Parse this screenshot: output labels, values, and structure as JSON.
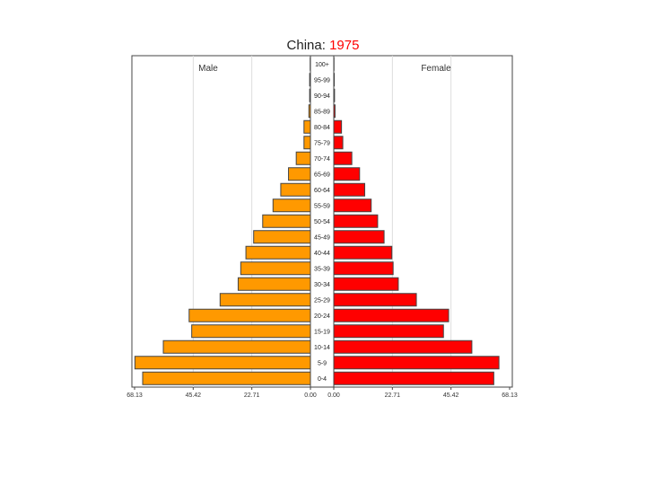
{
  "chart_data": {
    "type": "bar",
    "title_prefix": "China: ",
    "title_year": "1975",
    "title_colors": {
      "prefix": "#222222",
      "year": "#ff0000"
    },
    "left_label": "Male",
    "right_label": "Female",
    "colors": {
      "male": "#ff9900",
      "female": "#ff0000",
      "outline": "#444444"
    },
    "xlim": [
      0,
      68.13
    ],
    "gridlines": [
      22.71,
      45.42
    ],
    "tick_labels_left": [
      "68.13",
      "45.42",
      "22.71",
      "0.00"
    ],
    "tick_labels_right": [
      "0.00",
      "22.71",
      "45.42",
      "68.13"
    ],
    "categories": [
      "0-4",
      "5-9",
      "10-14",
      "15-19",
      "20-24",
      "25-29",
      "30-34",
      "35-39",
      "40-44",
      "45-49",
      "50-54",
      "55-59",
      "60-64",
      "65-69",
      "70-74",
      "75-79",
      "80-84",
      "85-89",
      "90-94",
      "95-99",
      "100+"
    ],
    "series": [
      {
        "name": "Male",
        "values": [
          65.0,
          68.0,
          57.0,
          46.0,
          47.0,
          35.0,
          28.0,
          27.0,
          25.0,
          22.0,
          18.5,
          14.5,
          11.5,
          8.5,
          5.5,
          2.5,
          2.5,
          0.6,
          0.3,
          0.3,
          0.1
        ]
      },
      {
        "name": "Female",
        "values": [
          62.0,
          64.0,
          53.5,
          42.5,
          44.5,
          32.0,
          25.0,
          23.0,
          22.5,
          19.5,
          17.0,
          14.5,
          12.0,
          10.0,
          7.0,
          3.5,
          3.0,
          0.5,
          0.3,
          0.2,
          0.1
        ]
      }
    ]
  }
}
